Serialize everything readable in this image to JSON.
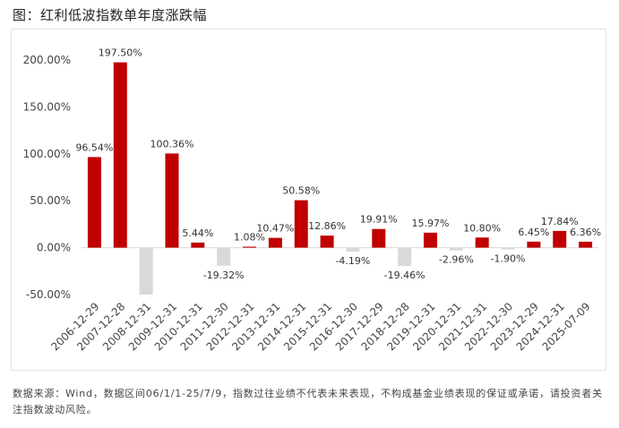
{
  "title": "图：红利低波指数单年度涨跌幅",
  "note": "数据来源：Wind，数据区间06/1/1-25/7/9，指数过往业绩不代表未来表现，不构成基金业绩表现的保证或承诺，请投资者关注指数波动风险。",
  "colors": {
    "positive": "#c00000",
    "negative": "#d9d9d9"
  },
  "chart_data": {
    "type": "bar",
    "title": "图：红利低波指数单年度涨跌幅",
    "categories": [
      "2006-12-29",
      "2007-12-28",
      "2008-12-31",
      "2009-12-31",
      "2010-12-31",
      "2011-12-30",
      "2012-12-31",
      "2013-12-31",
      "2014-12-31",
      "2015-12-31",
      "2016-12-30",
      "2017-12-29",
      "2018-12-28",
      "2019-12-31",
      "2020-12-31",
      "2021-12-31",
      "2022-12-30",
      "2023-12-29",
      "2024-12-31",
      "2025-07-09"
    ],
    "values": [
      96.54,
      197.5,
      -50.0,
      100.36,
      5.44,
      -19.32,
      1.08,
      10.47,
      50.58,
      12.86,
      -4.19,
      19.91,
      -19.46,
      15.97,
      -2.96,
      10.8,
      -1.9,
      6.45,
      17.84,
      6.36
    ],
    "labels": [
      "96.54%",
      "197.50%",
      "",
      "100.36%",
      "5.44%",
      "-19.32%",
      "1.08%",
      "10.47%",
      "50.58%",
      "12.86%",
      "-4.19%",
      "19.91%",
      "-19.46%",
      "15.97%",
      "-2.96%",
      "10.80%",
      "-1.90%",
      "6.45%",
      "17.84%",
      "6.36%"
    ],
    "yticks": [
      "200.00%",
      "150.00%",
      "100.00%",
      "50.00%",
      "0.00%",
      "-50.00%"
    ],
    "ytick_values": [
      200,
      150,
      100,
      50,
      0,
      -50
    ],
    "ylim": [
      -50,
      200
    ],
    "xlabel": "",
    "ylabel": "",
    "grid": false,
    "legend": "none"
  }
}
